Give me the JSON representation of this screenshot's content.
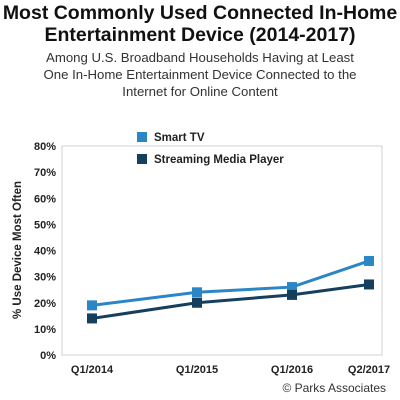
{
  "header": {
    "title_line1": "Most Commonly Used Connected In-Home",
    "title_line2": "Entertainment Device (2014-2017)",
    "subtitle_line1": "Among U.S. Broadband Households Having at Least",
    "subtitle_line2": "One In-Home Entertainment Device Connected to the",
    "subtitle_line3": "Internet for Online Content"
  },
  "credit": "© Parks Associates",
  "chart_data": {
    "type": "line",
    "categories": [
      "Q1/2014",
      "Q1/2015",
      "Q1/2016",
      "Q2/2017"
    ],
    "ylabel": "% Use Device Most Often",
    "ylim": [
      0,
      80
    ],
    "yticks": [
      "0%",
      "10%",
      "20%",
      "30%",
      "40%",
      "50%",
      "60%",
      "70%",
      "80%"
    ],
    "grid": false,
    "legend_position": "top-left",
    "series": [
      {
        "name": "Smart TV",
        "values": [
          19,
          24,
          26,
          36
        ],
        "color": "#2b86c5"
      },
      {
        "name": "Streaming Media Player",
        "values": [
          14,
          20,
          23,
          27
        ],
        "color": "#163f5e"
      }
    ]
  }
}
